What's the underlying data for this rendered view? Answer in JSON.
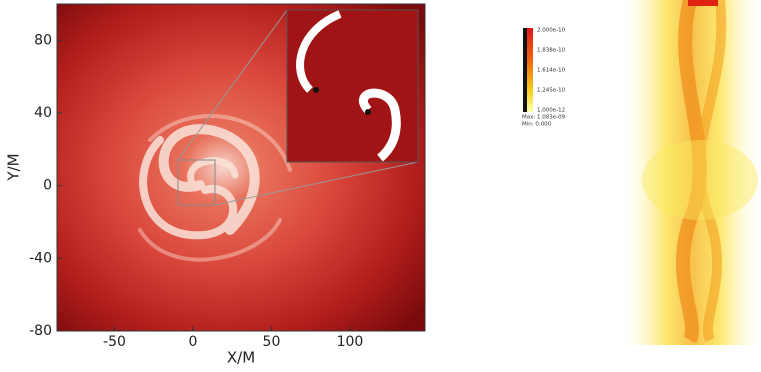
{
  "left_panel": {
    "xlabel": "X/M",
    "ylabel": "Y/M",
    "xlim": [
      -86.6,
      147.8
    ],
    "ylim": [
      -80,
      100
    ],
    "xticks": [
      -50,
      0,
      50,
      100
    ],
    "yticks": [
      -80,
      -40,
      0,
      40,
      80
    ]
  },
  "colorbar": {
    "labels": [
      "2.000e-10",
      "1.838e-10",
      "1.614e-10",
      "1.245e-10",
      "1.000e-12"
    ],
    "max_label": "Max: 1.083e-09",
    "min_label": "Min: 0.000"
  }
}
